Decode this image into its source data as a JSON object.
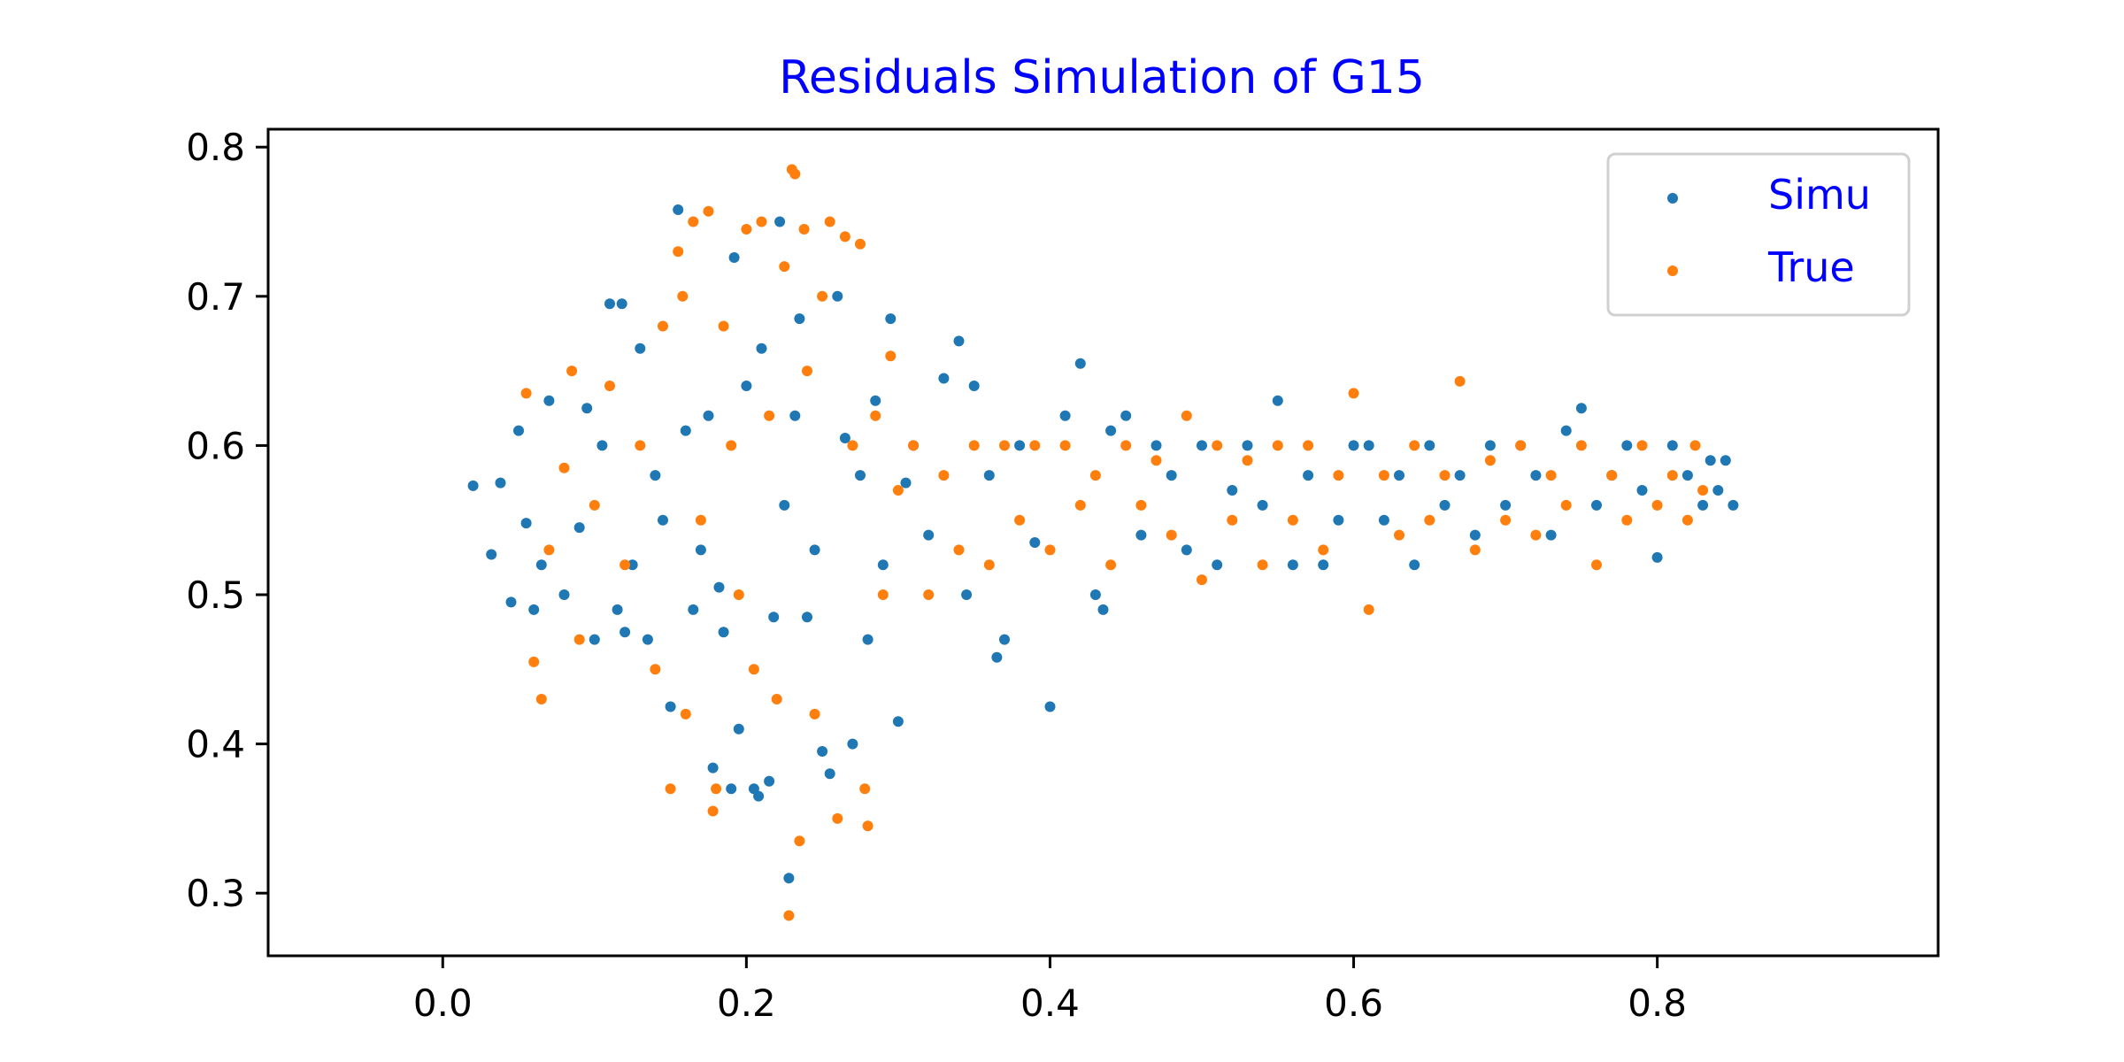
{
  "chart_data": {
    "type": "scatter",
    "title": "Residuals Simulation of G15",
    "title_color": "#0000ff",
    "xlabel": "",
    "ylabel": "",
    "xlim": [
      -0.115,
      0.985
    ],
    "ylim": [
      0.258,
      0.812
    ],
    "x_ticks": [
      0.0,
      0.2,
      0.4,
      0.6,
      0.8
    ],
    "x_tick_labels": [
      "0.0",
      "0.2",
      "0.4",
      "0.6",
      "0.8"
    ],
    "y_ticks": [
      0.3,
      0.4,
      0.5,
      0.6,
      0.7,
      0.8
    ],
    "y_tick_labels": [
      "0.3",
      "0.4",
      "0.5",
      "0.6",
      "0.7",
      "0.8"
    ],
    "grid": false,
    "legend": {
      "position": "top-right",
      "text_color": "#0000ff",
      "entries": [
        {
          "label": "Simu",
          "color": "#1f77b4"
        },
        {
          "label": "True",
          "color": "#ff7f0e"
        }
      ]
    },
    "series": [
      {
        "name": "Simu",
        "color": "#1f77b4",
        "points": [
          [
            0.02,
            0.573
          ],
          [
            0.032,
            0.527
          ],
          [
            0.038,
            0.575
          ],
          [
            0.045,
            0.495
          ],
          [
            0.05,
            0.61
          ],
          [
            0.055,
            0.548
          ],
          [
            0.06,
            0.49
          ],
          [
            0.065,
            0.52
          ],
          [
            0.07,
            0.63
          ],
          [
            0.08,
            0.5
          ],
          [
            0.09,
            0.545
          ],
          [
            0.095,
            0.625
          ],
          [
            0.1,
            0.47
          ],
          [
            0.105,
            0.6
          ],
          [
            0.11,
            0.695
          ],
          [
            0.115,
            0.49
          ],
          [
            0.118,
            0.695
          ],
          [
            0.12,
            0.475
          ],
          [
            0.125,
            0.52
          ],
          [
            0.13,
            0.665
          ],
          [
            0.135,
            0.47
          ],
          [
            0.14,
            0.58
          ],
          [
            0.145,
            0.55
          ],
          [
            0.15,
            0.425
          ],
          [
            0.155,
            0.758
          ],
          [
            0.16,
            0.61
          ],
          [
            0.165,
            0.49
          ],
          [
            0.17,
            0.53
          ],
          [
            0.175,
            0.62
          ],
          [
            0.178,
            0.384
          ],
          [
            0.182,
            0.505
          ],
          [
            0.185,
            0.475
          ],
          [
            0.19,
            0.37
          ],
          [
            0.192,
            0.726
          ],
          [
            0.195,
            0.41
          ],
          [
            0.2,
            0.64
          ],
          [
            0.205,
            0.37
          ],
          [
            0.208,
            0.365
          ],
          [
            0.21,
            0.665
          ],
          [
            0.215,
            0.375
          ],
          [
            0.218,
            0.485
          ],
          [
            0.222,
            0.75
          ],
          [
            0.225,
            0.56
          ],
          [
            0.228,
            0.31
          ],
          [
            0.232,
            0.62
          ],
          [
            0.235,
            0.685
          ],
          [
            0.24,
            0.485
          ],
          [
            0.245,
            0.53
          ],
          [
            0.25,
            0.395
          ],
          [
            0.255,
            0.38
          ],
          [
            0.26,
            0.7
          ],
          [
            0.265,
            0.605
          ],
          [
            0.27,
            0.4
          ],
          [
            0.275,
            0.58
          ],
          [
            0.28,
            0.47
          ],
          [
            0.285,
            0.63
          ],
          [
            0.29,
            0.52
          ],
          [
            0.295,
            0.685
          ],
          [
            0.3,
            0.415
          ],
          [
            0.305,
            0.575
          ],
          [
            0.31,
            0.6
          ],
          [
            0.32,
            0.54
          ],
          [
            0.33,
            0.645
          ],
          [
            0.34,
            0.67
          ],
          [
            0.345,
            0.5
          ],
          [
            0.35,
            0.64
          ],
          [
            0.36,
            0.58
          ],
          [
            0.365,
            0.458
          ],
          [
            0.37,
            0.47
          ],
          [
            0.38,
            0.6
          ],
          [
            0.39,
            0.535
          ],
          [
            0.4,
            0.425
          ],
          [
            0.41,
            0.62
          ],
          [
            0.42,
            0.655
          ],
          [
            0.43,
            0.5
          ],
          [
            0.435,
            0.49
          ],
          [
            0.44,
            0.61
          ],
          [
            0.45,
            0.62
          ],
          [
            0.46,
            0.54
          ],
          [
            0.47,
            0.6
          ],
          [
            0.48,
            0.58
          ],
          [
            0.49,
            0.53
          ],
          [
            0.5,
            0.6
          ],
          [
            0.51,
            0.52
          ],
          [
            0.52,
            0.57
          ],
          [
            0.53,
            0.6
          ],
          [
            0.54,
            0.56
          ],
          [
            0.55,
            0.63
          ],
          [
            0.56,
            0.52
          ],
          [
            0.57,
            0.58
          ],
          [
            0.58,
            0.52
          ],
          [
            0.59,
            0.55
          ],
          [
            0.6,
            0.6
          ],
          [
            0.61,
            0.6
          ],
          [
            0.62,
            0.55
          ],
          [
            0.63,
            0.58
          ],
          [
            0.64,
            0.52
          ],
          [
            0.65,
            0.6
          ],
          [
            0.66,
            0.56
          ],
          [
            0.67,
            0.58
          ],
          [
            0.68,
            0.54
          ],
          [
            0.69,
            0.6
          ],
          [
            0.7,
            0.56
          ],
          [
            0.71,
            0.6
          ],
          [
            0.72,
            0.58
          ],
          [
            0.73,
            0.54
          ],
          [
            0.74,
            0.61
          ],
          [
            0.75,
            0.625
          ],
          [
            0.76,
            0.56
          ],
          [
            0.77,
            0.58
          ],
          [
            0.78,
            0.6
          ],
          [
            0.79,
            0.57
          ],
          [
            0.8,
            0.525
          ],
          [
            0.81,
            0.6
          ],
          [
            0.82,
            0.58
          ],
          [
            0.83,
            0.56
          ],
          [
            0.835,
            0.59
          ],
          [
            0.84,
            0.57
          ],
          [
            0.845,
            0.59
          ],
          [
            0.85,
            0.56
          ]
        ]
      },
      {
        "name": "True",
        "color": "#ff7f0e",
        "points": [
          [
            0.055,
            0.635
          ],
          [
            0.06,
            0.455
          ],
          [
            0.065,
            0.43
          ],
          [
            0.07,
            0.53
          ],
          [
            0.08,
            0.585
          ],
          [
            0.085,
            0.65
          ],
          [
            0.09,
            0.47
          ],
          [
            0.1,
            0.56
          ],
          [
            0.11,
            0.64
          ],
          [
            0.12,
            0.52
          ],
          [
            0.13,
            0.6
          ],
          [
            0.14,
            0.45
          ],
          [
            0.145,
            0.68
          ],
          [
            0.15,
            0.37
          ],
          [
            0.155,
            0.73
          ],
          [
            0.158,
            0.7
          ],
          [
            0.16,
            0.42
          ],
          [
            0.165,
            0.75
          ],
          [
            0.17,
            0.55
          ],
          [
            0.175,
            0.757
          ],
          [
            0.178,
            0.355
          ],
          [
            0.18,
            0.37
          ],
          [
            0.185,
            0.68
          ],
          [
            0.19,
            0.6
          ],
          [
            0.195,
            0.5
          ],
          [
            0.2,
            0.745
          ],
          [
            0.205,
            0.45
          ],
          [
            0.21,
            0.75
          ],
          [
            0.215,
            0.62
          ],
          [
            0.22,
            0.43
          ],
          [
            0.225,
            0.72
          ],
          [
            0.228,
            0.285
          ],
          [
            0.23,
            0.785
          ],
          [
            0.232,
            0.782
          ],
          [
            0.235,
            0.335
          ],
          [
            0.238,
            0.745
          ],
          [
            0.24,
            0.65
          ],
          [
            0.245,
            0.42
          ],
          [
            0.25,
            0.7
          ],
          [
            0.255,
            0.75
          ],
          [
            0.26,
            0.35
          ],
          [
            0.265,
            0.74
          ],
          [
            0.27,
            0.6
          ],
          [
            0.275,
            0.735
          ],
          [
            0.278,
            0.37
          ],
          [
            0.28,
            0.345
          ],
          [
            0.285,
            0.62
          ],
          [
            0.29,
            0.5
          ],
          [
            0.295,
            0.66
          ],
          [
            0.3,
            0.57
          ],
          [
            0.31,
            0.6
          ],
          [
            0.32,
            0.5
          ],
          [
            0.33,
            0.58
          ],
          [
            0.34,
            0.53
          ],
          [
            0.35,
            0.6
          ],
          [
            0.36,
            0.52
          ],
          [
            0.37,
            0.6
          ],
          [
            0.38,
            0.55
          ],
          [
            0.39,
            0.6
          ],
          [
            0.4,
            0.53
          ],
          [
            0.41,
            0.6
          ],
          [
            0.42,
            0.56
          ],
          [
            0.43,
            0.58
          ],
          [
            0.44,
            0.52
          ],
          [
            0.45,
            0.6
          ],
          [
            0.46,
            0.56
          ],
          [
            0.47,
            0.59
          ],
          [
            0.48,
            0.54
          ],
          [
            0.49,
            0.62
          ],
          [
            0.5,
            0.51
          ],
          [
            0.51,
            0.6
          ],
          [
            0.52,
            0.55
          ],
          [
            0.53,
            0.59
          ],
          [
            0.54,
            0.52
          ],
          [
            0.55,
            0.6
          ],
          [
            0.56,
            0.55
          ],
          [
            0.57,
            0.6
          ],
          [
            0.58,
            0.53
          ],
          [
            0.59,
            0.58
          ],
          [
            0.6,
            0.635
          ],
          [
            0.61,
            0.49
          ],
          [
            0.62,
            0.58
          ],
          [
            0.63,
            0.54
          ],
          [
            0.64,
            0.6
          ],
          [
            0.65,
            0.55
          ],
          [
            0.66,
            0.58
          ],
          [
            0.67,
            0.643
          ],
          [
            0.68,
            0.53
          ],
          [
            0.69,
            0.59
          ],
          [
            0.7,
            0.55
          ],
          [
            0.71,
            0.6
          ],
          [
            0.72,
            0.54
          ],
          [
            0.73,
            0.58
          ],
          [
            0.74,
            0.56
          ],
          [
            0.75,
            0.6
          ],
          [
            0.76,
            0.52
          ],
          [
            0.77,
            0.58
          ],
          [
            0.78,
            0.55
          ],
          [
            0.79,
            0.6
          ],
          [
            0.8,
            0.56
          ],
          [
            0.81,
            0.58
          ],
          [
            0.82,
            0.55
          ],
          [
            0.825,
            0.6
          ],
          [
            0.83,
            0.57
          ]
        ]
      }
    ]
  }
}
